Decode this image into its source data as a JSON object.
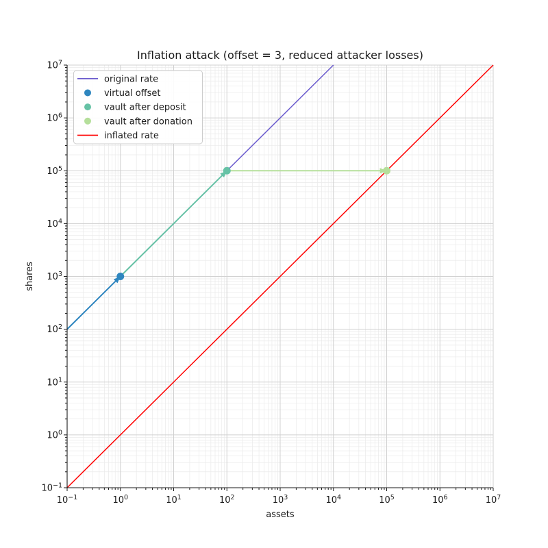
{
  "chart_data": {
    "type": "line",
    "title": "Inflation attack (offset = 3, reduced attacker losses)",
    "xlabel": "assets",
    "ylabel": "shares",
    "xscale": "log",
    "yscale": "log",
    "xlim": [
      0.1,
      10000000
    ],
    "ylim": [
      0.1,
      10000000
    ],
    "x_tick_exponents": [
      -1,
      0,
      1,
      2,
      3,
      4,
      5,
      6,
      7
    ],
    "y_tick_exponents": [
      -1,
      0,
      1,
      2,
      3,
      4,
      5,
      6,
      7
    ],
    "grid": {
      "major": true,
      "minor": true
    },
    "legend_position": "upper left",
    "series": [
      {
        "name": "original rate",
        "kind": "line",
        "color": "#6a5acd",
        "linewidth": 1.5,
        "points": [
          [
            0.1,
            100
          ],
          [
            10000,
            10000000
          ]
        ]
      },
      {
        "name": "virtual offset",
        "kind": "scatter",
        "color": "#2e86bf",
        "markersize": 5.5,
        "points": [
          [
            1,
            1000
          ]
        ]
      },
      {
        "name": "vault after deposit",
        "kind": "scatter",
        "color": "#66c2a5",
        "markersize": 5.5,
        "points": [
          [
            100,
            100000
          ]
        ]
      },
      {
        "name": "vault after donation",
        "kind": "scatter",
        "color": "#b5df9b",
        "markersize": 5.5,
        "points": [
          [
            100000,
            100000
          ]
        ]
      },
      {
        "name": "inflated rate",
        "kind": "line",
        "color": "#ff0000",
        "linewidth": 1.5,
        "points": [
          [
            0.1,
            0.1
          ],
          [
            10000000,
            10000000
          ]
        ]
      }
    ],
    "arrows": [
      {
        "name": "offset arrow",
        "from": [
          0.1,
          100
        ],
        "to": [
          1,
          1000
        ],
        "color": "#2e86bf"
      },
      {
        "name": "deposit arrow",
        "from": [
          1,
          1000
        ],
        "to": [
          100,
          100000
        ],
        "color": "#66c2a5"
      },
      {
        "name": "donation arrow",
        "from": [
          100,
          100000
        ],
        "to": [
          100000,
          100000
        ],
        "color": "#b5df9b"
      }
    ],
    "legend": [
      {
        "label": "original rate",
        "marker": "line",
        "color": "#6a5acd"
      },
      {
        "label": "virtual offset",
        "marker": "dot",
        "color": "#2e86bf"
      },
      {
        "label": "vault after deposit",
        "marker": "dot",
        "color": "#66c2a5"
      },
      {
        "label": "vault after donation",
        "marker": "dot",
        "color": "#b5df9b"
      },
      {
        "label": "inflated rate",
        "marker": "line",
        "color": "#ff0000"
      }
    ],
    "style": {
      "grid_major_color": "#d0d0d0",
      "grid_minor_color": "#eaeaea",
      "spine_color": "#1a1a1a",
      "text_color": "#1a1a1a",
      "legend_border_color": "#cccccc"
    }
  }
}
